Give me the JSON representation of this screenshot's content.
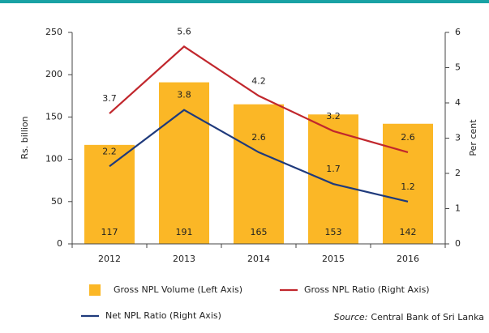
{
  "chart_data": {
    "type": "bar-line",
    "ylabel": "Rs. billion",
    "y2label": "Per cent",
    "categories": [
      "2012",
      "2013",
      "2014",
      "2015",
      "2016"
    ],
    "series": [
      {
        "name": "Gross NPL Volume (Left Axis)",
        "type": "bar",
        "color": "#fbb726",
        "values": [
          117,
          191,
          165,
          153,
          142
        ]
      },
      {
        "name": "Gross NPL Ratio (Right Axis)",
        "type": "line",
        "axis": "y2",
        "color": "#c1272d",
        "values": [
          3.7,
          5.6,
          4.2,
          3.2,
          2.6
        ]
      },
      {
        "name": "Net NPL Ratio (Right Axis)",
        "type": "line",
        "axis": "y2",
        "color": "#1f3a7c",
        "values": [
          2.2,
          3.8,
          2.6,
          1.7,
          1.2
        ]
      }
    ],
    "ylim": [
      0,
      250
    ],
    "yticks": [
      0,
      50,
      100,
      150,
      200,
      250
    ],
    "y2lim": [
      0,
      6
    ],
    "y2ticks": [
      0,
      1,
      2,
      3,
      4,
      5,
      6
    ],
    "grid": false,
    "source_label": "Source:",
    "source": "Central Bank of Sri Lanka"
  }
}
